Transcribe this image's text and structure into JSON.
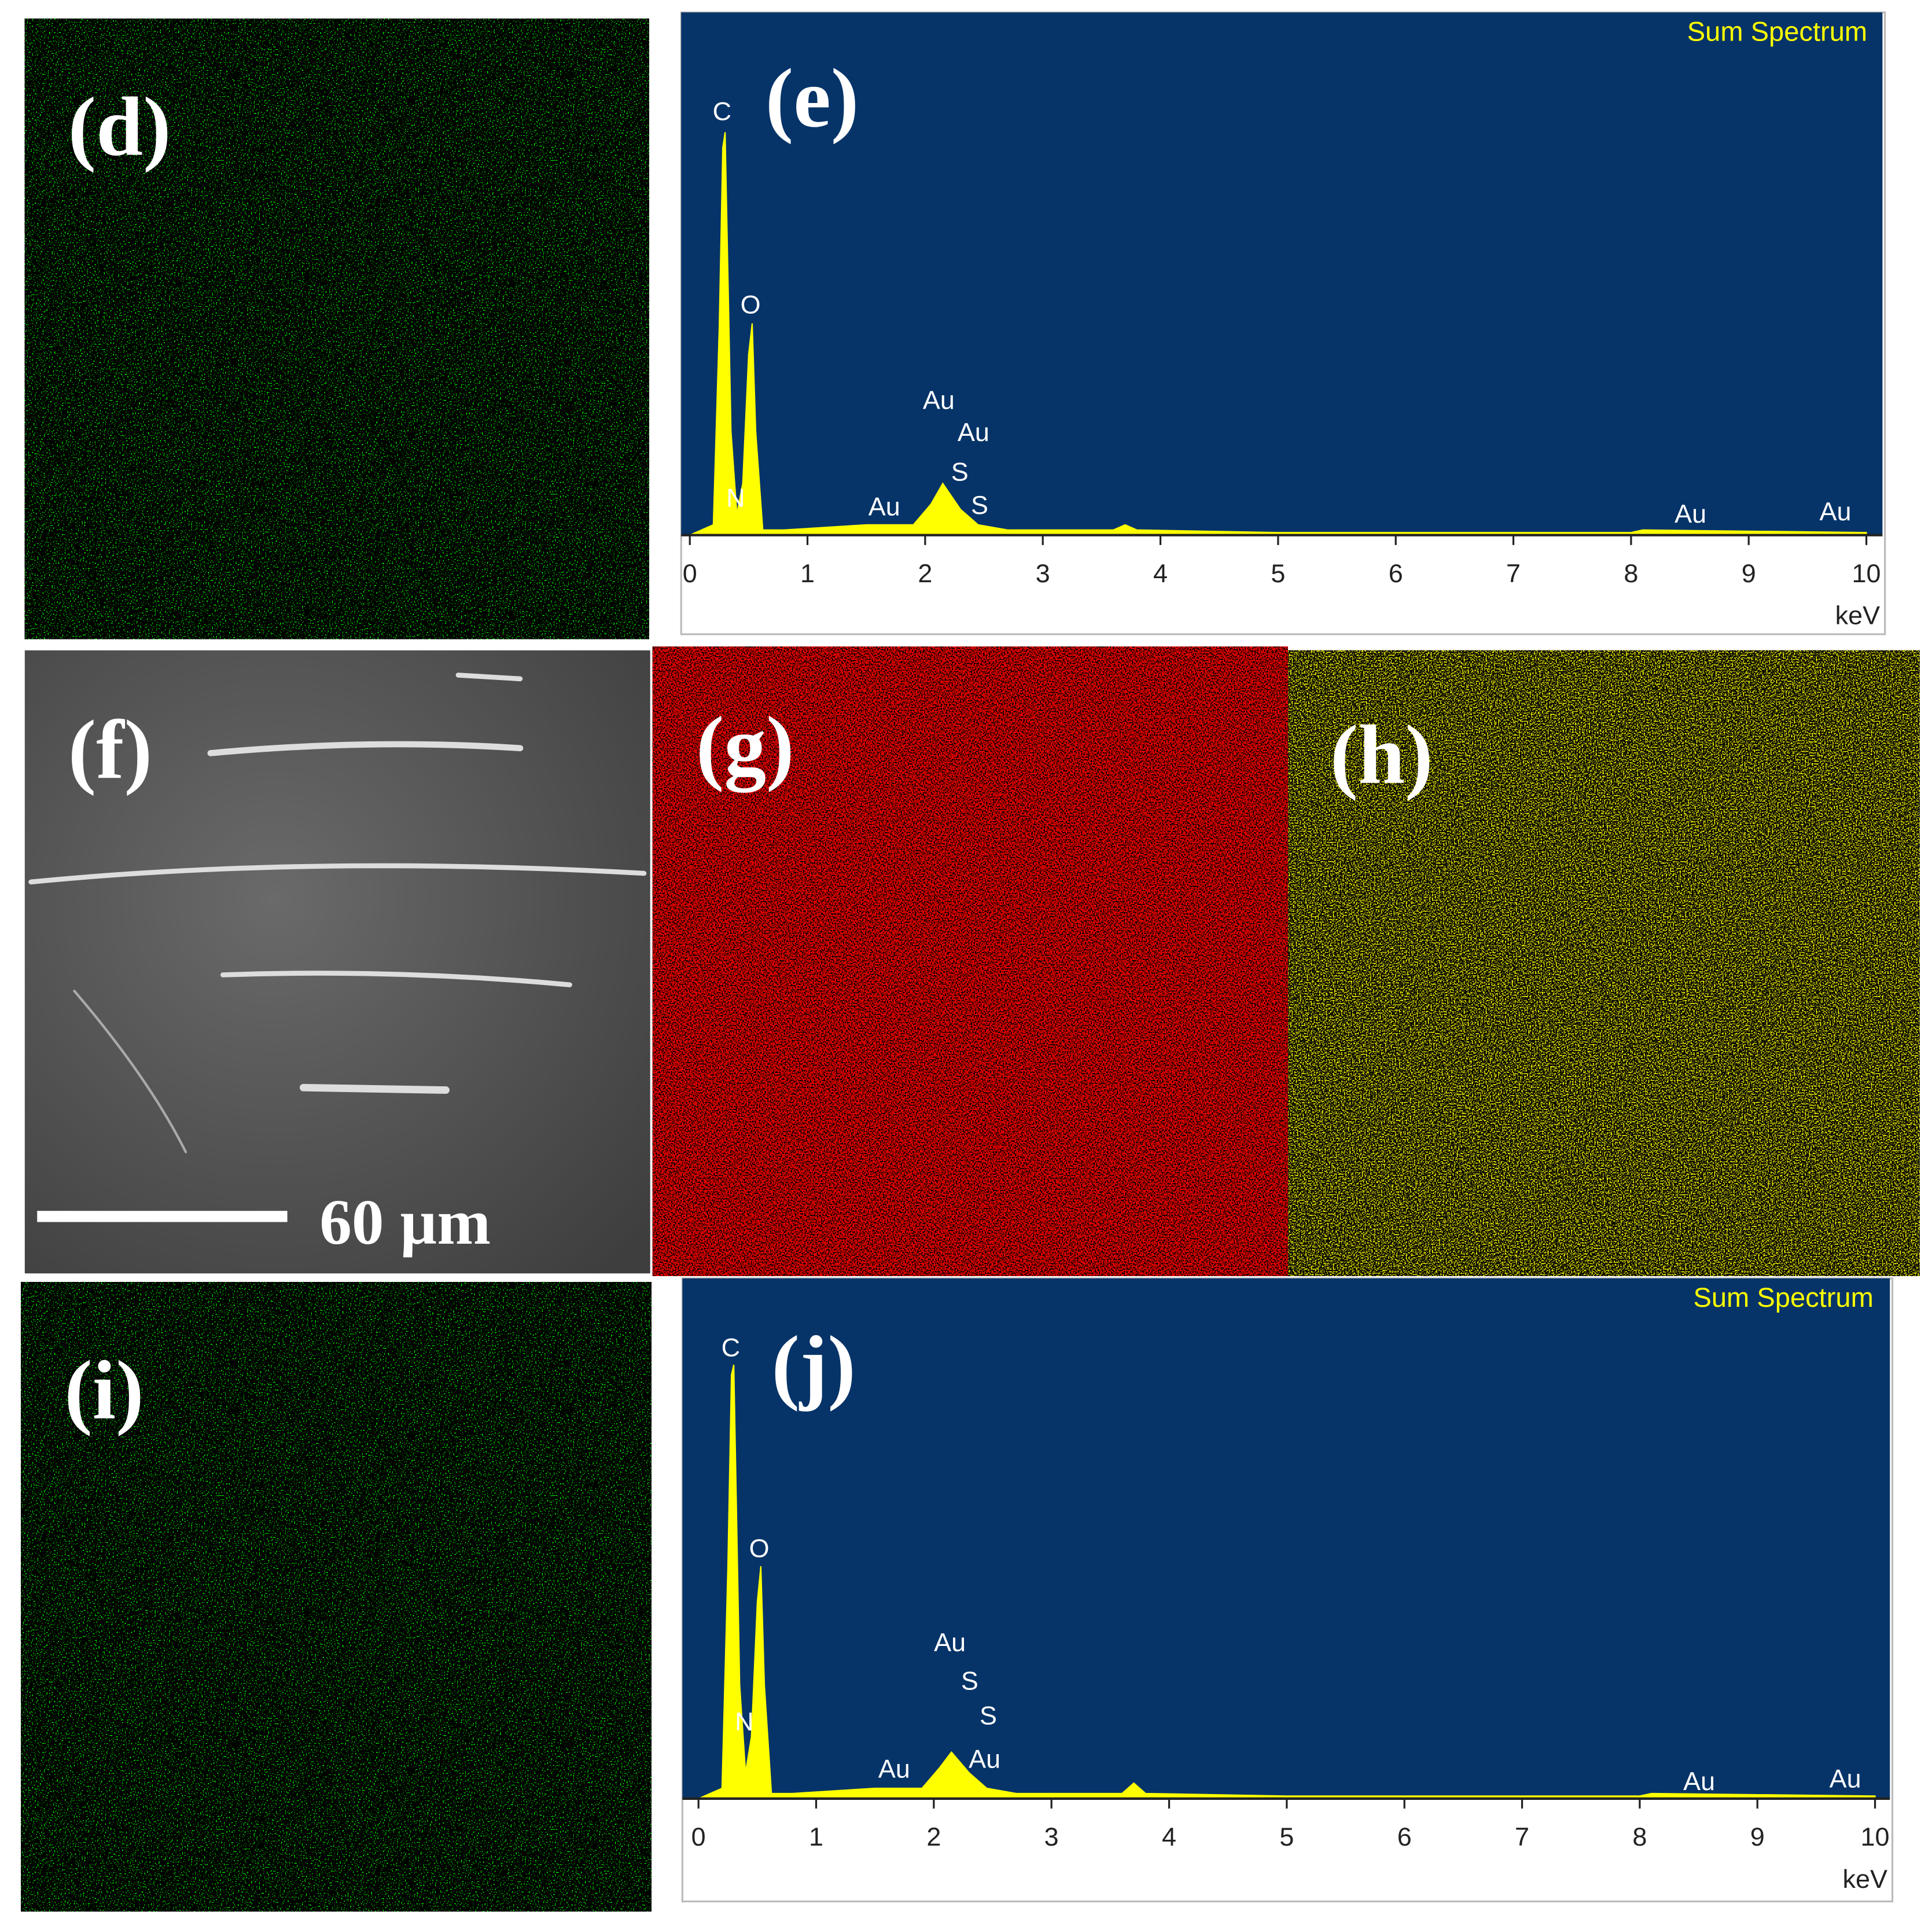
{
  "panels": {
    "d": {
      "label": "(d)"
    },
    "f": {
      "label": "(f)",
      "scale_bar": "60 µm"
    },
    "g": {
      "label": "(g)"
    },
    "h": {
      "label": "(h)"
    },
    "i": {
      "label": "(i)"
    }
  },
  "chart_data": [
    {
      "type": "area",
      "label": "(e)",
      "title": "Sum Spectrum",
      "x_label": "keV",
      "x": [
        0,
        0.2,
        0.25,
        0.28,
        0.3,
        0.35,
        0.4,
        0.45,
        0.5,
        0.53,
        0.56,
        0.62,
        0.8,
        1.5,
        1.7,
        1.9,
        2.05,
        2.15,
        2.3,
        2.45,
        2.7,
        3.6,
        3.7,
        3.8,
        5,
        8,
        8.1,
        10
      ],
      "values": [
        0,
        2,
        40,
        75,
        78,
        20,
        4,
        10,
        35,
        41,
        20,
        1,
        1,
        2,
        2,
        2,
        6,
        10,
        5,
        2,
        1,
        1,
        2,
        1,
        0.5,
        0.5,
        1,
        0.5
      ],
      "color": "#ffff00",
      "xlim": [
        0,
        10
      ],
      "ylim": [
        0,
        100
      ],
      "xticks": [
        0,
        1,
        2,
        3,
        4,
        5,
        6,
        7,
        8,
        9,
        10
      ],
      "annotations": [
        "C",
        "O",
        "N",
        "Au",
        "Au",
        "S",
        "S",
        "Au",
        "Au",
        "Au"
      ]
    },
    {
      "type": "area",
      "label": "(j)",
      "title": "Sum Spectrum",
      "x_label": "keV",
      "x": [
        0,
        0.2,
        0.25,
        0.28,
        0.3,
        0.35,
        0.4,
        0.45,
        0.5,
        0.53,
        0.56,
        0.62,
        0.8,
        1.5,
        1.7,
        1.9,
        2.05,
        2.15,
        2.3,
        2.45,
        2.7,
        3.6,
        3.7,
        3.8,
        5,
        8,
        8.1,
        10
      ],
      "values": [
        0,
        2,
        45,
        82,
        84,
        22,
        5,
        12,
        38,
        45,
        22,
        1,
        1,
        2,
        2,
        2,
        6,
        9,
        5,
        2,
        1,
        1,
        3,
        1,
        0.5,
        0.5,
        1,
        0.5
      ],
      "color": "#ffff00",
      "xlim": [
        0,
        10
      ],
      "ylim": [
        0,
        100
      ],
      "xticks": [
        0,
        1,
        2,
        3,
        4,
        5,
        6,
        7,
        8,
        9,
        10
      ],
      "annotations": [
        "C",
        "O",
        "N",
        "Au",
        "S",
        "S",
        "Au",
        "Au",
        "Au",
        "Au"
      ]
    }
  ]
}
